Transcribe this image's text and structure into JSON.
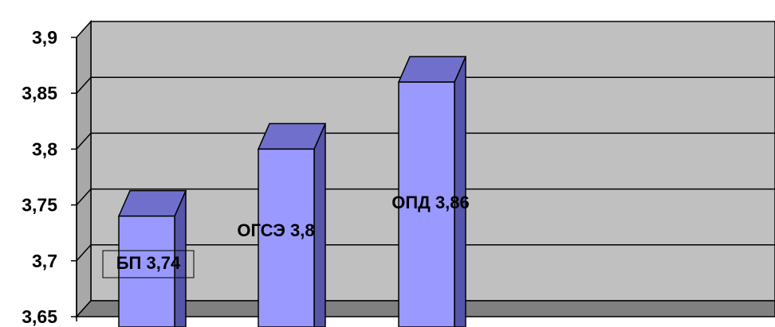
{
  "chart_data": {
    "type": "bar",
    "style": "3d-column",
    "categories": [
      "БП",
      "ОГСЭ",
      "ОПД"
    ],
    "values": [
      3.74,
      3.8,
      3.86
    ],
    "data_labels": [
      "БП 3,74",
      "ОГСЭ 3,8",
      "ОПД 3,86"
    ],
    "ylim": [
      3.65,
      3.9
    ],
    "yticks": [
      3.65,
      3.7,
      3.75,
      3.8,
      3.85,
      3.9
    ],
    "ytick_labels": [
      "3,65",
      "3,7",
      "3,75",
      "3,8",
      "3,85",
      "3,9"
    ],
    "grid": true,
    "title": "",
    "xlabel": "",
    "ylabel": "",
    "colors": {
      "bar_front": "#9999ff",
      "bar_top": "#7070cc",
      "bar_side": "#5555aa",
      "wall": "#c0c0c0",
      "floor": "#808080"
    }
  }
}
